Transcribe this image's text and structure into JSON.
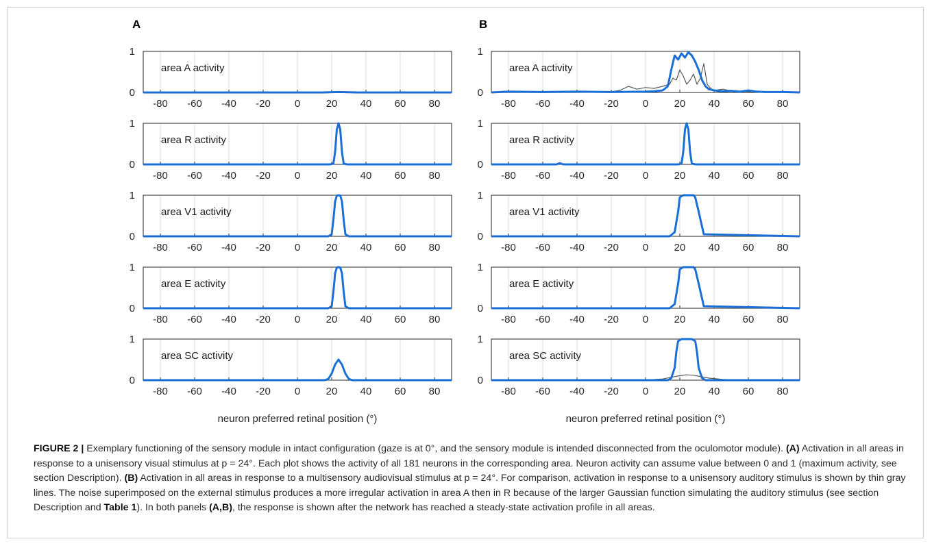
{
  "figure": {
    "caption": {
      "label": "FIGURE 2 |",
      "segments": [
        {
          "text": " Exemplary functioning of the sensory module in intact configuration (gaze is at 0°, and the sensory module is intended disconnected from the oculomotor module). ",
          "bold": false
        },
        {
          "text": "(A)",
          "bold": true
        },
        {
          "text": " Activation in all areas in response to a unisensory visual stimulus at p = 24°. Each plot shows the activity of all 181 neurons in the corresponding area. Neuron activity can assume value between 0 and 1 (maximum activity, see section Description). ",
          "bold": false
        },
        {
          "text": "(B)",
          "bold": true
        },
        {
          "text": " Activation in all areas in response to a multisensory audiovisual stimulus at p = 24°. For comparison, activation in response to a unisensory auditory stimulus is shown by thin gray lines. The noise superimposed on the external stimulus produces a more irregular activation in area A then in R because of the larger Gaussian function simulating the auditory stimulus (see section Description and ",
          "bold": false
        },
        {
          "text": "Table 1",
          "bold": true
        },
        {
          "text": "). In both panels ",
          "bold": false
        },
        {
          "text": "(A,B)",
          "bold": true
        },
        {
          "text": ", the response is shown after the network has reached a steady-state activation profile in all areas.",
          "bold": false
        }
      ]
    }
  },
  "colors": {
    "primary": "#1a6fd6",
    "secondary": "#555555",
    "grid": "#dcdcdc",
    "axis": "#262626"
  },
  "chart_data": [
    {
      "panel": "A",
      "type": "line",
      "xlabel": "neuron preferred retinal position (°)",
      "xlim": [
        -90,
        90
      ],
      "xticks": [
        -80,
        -60,
        -40,
        -20,
        0,
        20,
        40,
        60,
        80
      ],
      "ylim": [
        0,
        1
      ],
      "yticks": [
        0,
        1
      ],
      "grid": true,
      "subplots": [
        {
          "label": "area A activity",
          "series": [
            {
              "role": "audiovisual",
              "x": [
                -90,
                0,
                15,
                24,
                35,
                90
              ],
              "y": [
                0,
                0,
                0,
                0.01,
                0,
                0
              ]
            }
          ]
        },
        {
          "label": "area R activity",
          "series": [
            {
              "role": "audiovisual",
              "x": [
                -90,
                19,
                21,
                22,
                23,
                24,
                25,
                26,
                27,
                29,
                90
              ],
              "y": [
                0,
                0,
                0.02,
                0.3,
                0.85,
                1.0,
                0.85,
                0.3,
                0.02,
                0,
                0
              ]
            }
          ]
        },
        {
          "label": "area V1 activity",
          "series": [
            {
              "role": "audiovisual",
              "x": [
                -90,
                18,
                20,
                21,
                22,
                23,
                24,
                25,
                26,
                27,
                28,
                30,
                90
              ],
              "y": [
                0,
                0,
                0.05,
                0.4,
                0.85,
                0.99,
                1.0,
                0.99,
                0.85,
                0.4,
                0.05,
                0,
                0
              ]
            }
          ]
        },
        {
          "label": "area E activity",
          "series": [
            {
              "role": "audiovisual",
              "x": [
                -90,
                18,
                20,
                21,
                22,
                23,
                24,
                25,
                26,
                27,
                28,
                30,
                90
              ],
              "y": [
                0,
                0,
                0.05,
                0.4,
                0.85,
                0.99,
                1.0,
                0.99,
                0.85,
                0.4,
                0.05,
                0,
                0
              ]
            }
          ]
        },
        {
          "label": "area SC activity",
          "series": [
            {
              "role": "audiovisual",
              "x": [
                -90,
                16,
                18,
                20,
                22,
                24,
                26,
                28,
                30,
                32,
                90
              ],
              "y": [
                0,
                0,
                0.03,
                0.16,
                0.38,
                0.5,
                0.38,
                0.16,
                0.03,
                0,
                0
              ]
            },
            {
              "role": "auditory",
              "x": [
                -90,
                24,
                90
              ],
              "y": [
                0,
                0,
                0
              ]
            }
          ]
        }
      ]
    },
    {
      "panel": "B",
      "type": "line",
      "xlabel": "neuron preferred retinal position (°)",
      "xlim": [
        -90,
        90
      ],
      "xticks": [
        -80,
        -60,
        -40,
        -20,
        0,
        20,
        40,
        60,
        80
      ],
      "ylim": [
        0,
        1
      ],
      "yticks": [
        0,
        1
      ],
      "grid": true,
      "subplots": [
        {
          "label": "area A activity",
          "series": [
            {
              "role": "audiovisual",
              "x": [
                -90,
                -80,
                -60,
                -40,
                -20,
                0,
                5,
                10,
                13,
                15,
                17,
                19,
                21,
                23,
                25,
                27,
                29,
                31,
                33,
                35,
                37,
                40,
                45,
                50,
                55,
                60,
                65,
                70,
                80,
                90
              ],
              "y": [
                0,
                0.02,
                0.01,
                0.02,
                0.01,
                0.02,
                0.03,
                0.05,
                0.15,
                0.55,
                0.9,
                0.8,
                0.95,
                0.85,
                0.98,
                0.9,
                0.75,
                0.55,
                0.3,
                0.15,
                0.08,
                0.05,
                0.03,
                0.04,
                0.02,
                0.05,
                0.02,
                0.01,
                0.01,
                0
              ]
            },
            {
              "role": "auditory",
              "x": [
                -90,
                -40,
                -20,
                -15,
                -10,
                -5,
                0,
                5,
                10,
                14,
                16,
                18,
                20,
                22,
                24,
                26,
                28,
                30,
                32,
                34,
                36,
                38,
                40,
                45,
                50,
                60,
                90
              ],
              "y": [
                0,
                0,
                0.02,
                0.05,
                0.15,
                0.08,
                0.12,
                0.1,
                0.15,
                0.2,
                0.35,
                0.3,
                0.55,
                0.4,
                0.2,
                0.3,
                0.45,
                0.2,
                0.35,
                0.7,
                0.2,
                0.1,
                0.05,
                0.08,
                0.04,
                0.02,
                0
              ]
            }
          ]
        },
        {
          "label": "area R activity",
          "series": [
            {
              "role": "audiovisual",
              "x": [
                -90,
                -52,
                -50,
                -48,
                19,
                21,
                22,
                23,
                24,
                25,
                26,
                27,
                29,
                90
              ],
              "y": [
                0,
                0,
                0.03,
                0,
                0,
                0.02,
                0.3,
                0.85,
                1.0,
                0.85,
                0.3,
                0.02,
                0,
                0
              ]
            }
          ]
        },
        {
          "label": "area V1 activity",
          "series": [
            {
              "role": "audiovisual",
              "x": [
                -90,
                14,
                17,
                19,
                20,
                22,
                24,
                26,
                28,
                29,
                31,
                34,
                90
              ],
              "y": [
                0,
                0,
                0.1,
                0.6,
                0.95,
                1.0,
                1.0,
                1.0,
                1.0,
                0.95,
                0.6,
                0.05,
                0
              ]
            },
            {
              "role": "auditory",
              "x": [
                -90,
                24,
                90
              ],
              "y": [
                0,
                0,
                0
              ]
            }
          ]
        },
        {
          "label": "area E activity",
          "series": [
            {
              "role": "audiovisual",
              "x": [
                -90,
                14,
                17,
                19,
                20,
                22,
                24,
                26,
                28,
                29,
                31,
                34,
                90
              ],
              "y": [
                0,
                0,
                0.1,
                0.6,
                0.95,
                1.0,
                1.0,
                1.0,
                1.0,
                0.95,
                0.6,
                0.05,
                0
              ]
            },
            {
              "role": "auditory",
              "x": [
                -90,
                24,
                90
              ],
              "y": [
                0,
                0,
                0
              ]
            }
          ]
        },
        {
          "label": "area SC activity",
          "series": [
            {
              "role": "audiovisual",
              "x": [
                -90,
                13,
                15,
                17,
                18,
                19,
                21,
                24,
                27,
                29,
                30,
                31,
                33,
                35,
                90
              ],
              "y": [
                0,
                0,
                0.05,
                0.3,
                0.7,
                0.95,
                1.0,
                1.0,
                1.0,
                0.95,
                0.7,
                0.3,
                0.05,
                0,
                0
              ]
            },
            {
              "role": "auditory",
              "x": [
                -90,
                -10,
                0,
                10,
                15,
                20,
                24,
                28,
                32,
                37,
                45,
                55,
                90
              ],
              "y": [
                0,
                0,
                0.005,
                0.03,
                0.07,
                0.11,
                0.13,
                0.12,
                0.09,
                0.05,
                0.02,
                0.005,
                0
              ]
            }
          ]
        }
      ]
    }
  ]
}
